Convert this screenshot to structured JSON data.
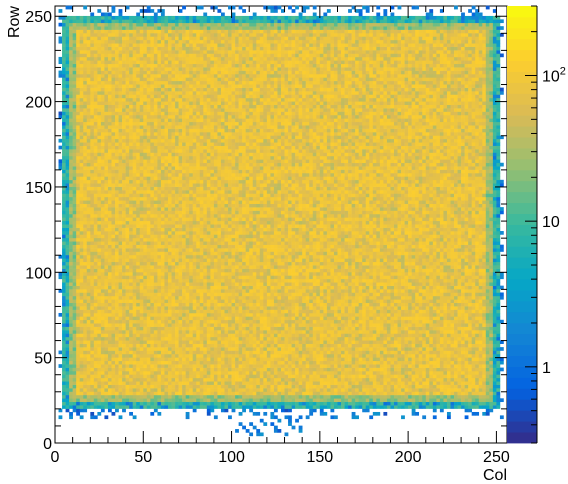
{
  "chart_data": {
    "type": "heatmap",
    "title": "",
    "xlabel": "Col",
    "ylabel": "Row",
    "xlim": [
      0,
      256
    ],
    "ylim": [
      0,
      256
    ],
    "x_ticks": [
      0,
      50,
      100,
      150,
      200,
      250
    ],
    "y_ticks": [
      0,
      50,
      100,
      150,
      200,
      250
    ],
    "z_scale": "log",
    "z_range": [
      0.3,
      300
    ],
    "z_ticks": [
      {
        "label": "1",
        "value": 1
      },
      {
        "label": "10",
        "value": 10
      },
      {
        "label": "10",
        "sup": "2",
        "value": 100
      }
    ],
    "grid": false,
    "colormap": [
      "#352a87",
      "#0363e1",
      "#1485d4",
      "#06a7c6",
      "#38b99e",
      "#92bf73",
      "#d9ba56",
      "#fcce2e",
      "#f9fb0e"
    ],
    "occupancy": {
      "x_range": [
        3,
        250
      ],
      "y_range": [
        20,
        248
      ],
      "typical_counts": 100
    }
  }
}
